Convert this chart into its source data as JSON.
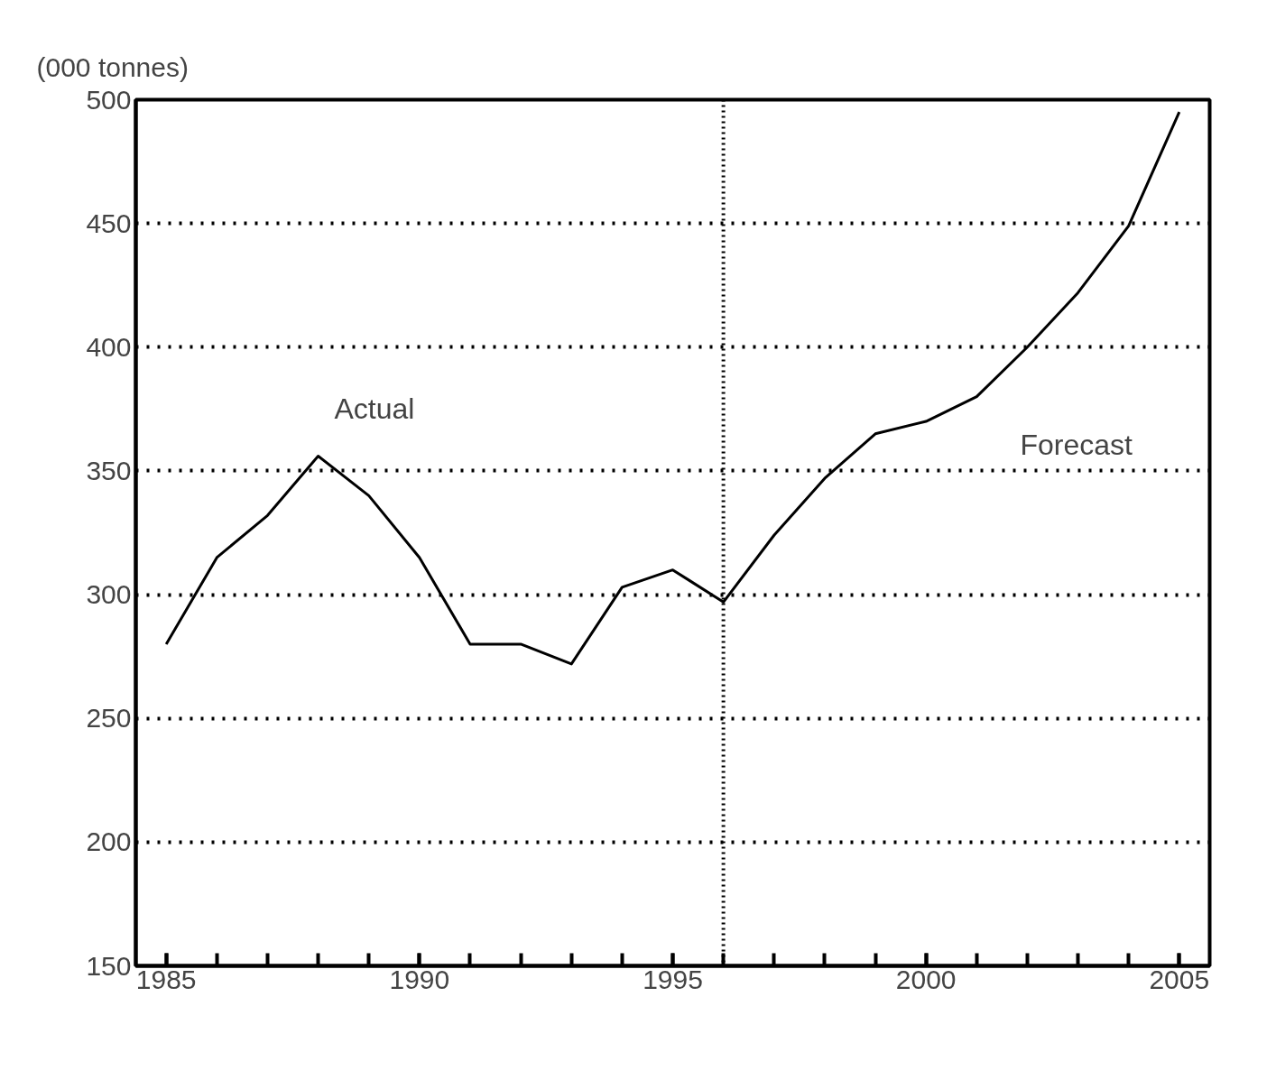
{
  "chart_data": {
    "type": "line",
    "ylabel": "(000 tonnes)",
    "x": [
      1985,
      1986,
      1987,
      1988,
      1989,
      1990,
      1991,
      1992,
      1993,
      1994,
      1995,
      1996,
      1997,
      1998,
      1999,
      2000,
      2001,
      2002,
      2003,
      2004,
      2005
    ],
    "series": [
      {
        "color": "#000000",
        "values": [
          280,
          315,
          332,
          356,
          340,
          315,
          280,
          280,
          272,
          303,
          310,
          297,
          324,
          347,
          365,
          370,
          380,
          400,
          422,
          449,
          495
        ]
      }
    ],
    "xlim": [
      1984.4,
      2005.6
    ],
    "ylim": [
      150,
      500
    ],
    "xticks": [
      1985,
      1990,
      1995,
      2000,
      2005
    ],
    "yticks": [
      150,
      200,
      250,
      300,
      350,
      400,
      450,
      500
    ],
    "grid": "y",
    "line_style": "solid",
    "ref_lines": [
      {
        "axis": "x",
        "value": 1996,
        "label": null,
        "line_style": "dotted",
        "color": "#000000"
      }
    ],
    "annotations": [
      "Actual",
      "Forecast"
    ]
  }
}
